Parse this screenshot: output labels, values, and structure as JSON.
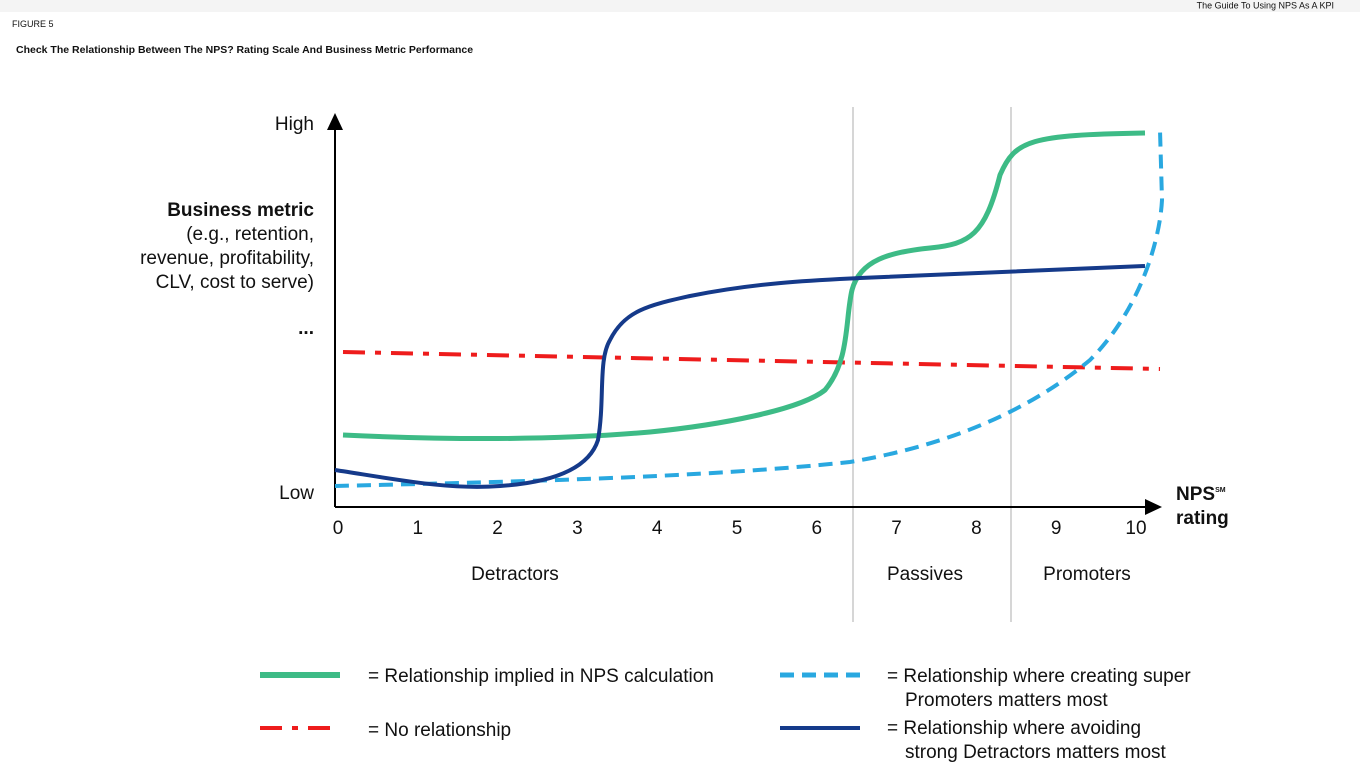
{
  "header": {
    "figure": "FIGURE 5",
    "title": "Check The Relationship Between The NPS? Rating Scale And Business Metric Performance",
    "report": "The Guide To Using NPS As A KPI"
  },
  "y_axis": {
    "high": "High",
    "low": "Low",
    "label_bold": "Business metric",
    "label_lines": [
      "(e.g., retention,",
      "revenue, profitability,",
      "CLV, cost to serve)"
    ],
    "ellipsis": "..."
  },
  "x_axis": {
    "ticks": [
      "0",
      "1",
      "2",
      "3",
      "4",
      "5",
      "6",
      "7",
      "8",
      "9",
      "10"
    ],
    "label": "NPS",
    "superscript": "SM",
    "label_second": "rating"
  },
  "groups": [
    "Detractors",
    "Passives",
    "Promoters"
  ],
  "legend": [
    {
      "lines": [
        "= Relationship implied in NPS calculation"
      ]
    },
    {
      "lines": [
        "= No relationship"
      ]
    },
    {
      "lines": [
        "= Relationship where creating super",
        "Promoters matters most"
      ]
    },
    {
      "lines": [
        "= Relationship where avoiding",
        "strong Detractors matters most"
      ]
    }
  ]
}
